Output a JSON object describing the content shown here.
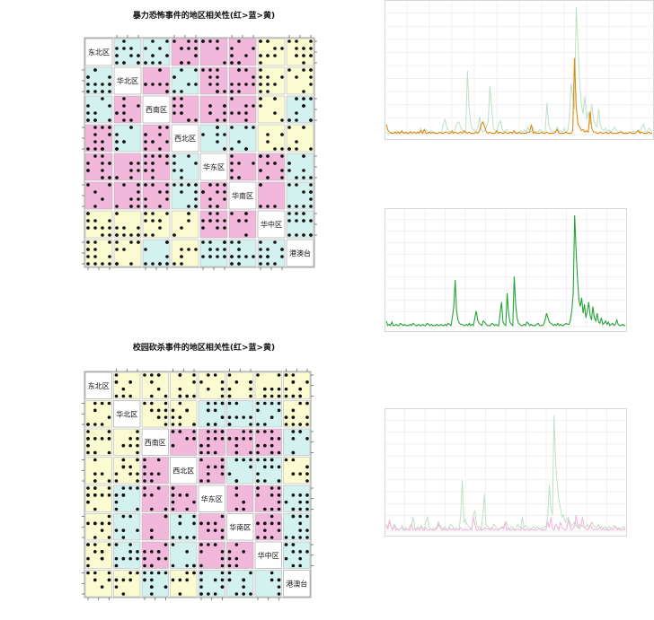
{
  "colors": {
    "red": "#f2b8dc",
    "cyan": "#d3f1ef",
    "yellow": "#fbfbd2",
    "orange": "#e08a12",
    "green": "#24a436",
    "red_line": "#d23b2a",
    "ghost": "#bfe0c6",
    "grid": "#e8e8e8"
  },
  "chart_data": [
    {
      "type": "scatter",
      "title": "暴力恐怖事件的地区相关性(红>蓝>黄)",
      "variables": [
        "东北区",
        "华北区",
        "西南区",
        "西北区",
        "华东区",
        "华南区",
        "华中区",
        "港澳台"
      ],
      "correlation_level": [
        [
          "diag",
          "cyan",
          "cyan",
          "red",
          "red",
          "red",
          "yellow",
          "yellow"
        ],
        [
          "cyan",
          "diag",
          "red",
          "cyan",
          "red",
          "red",
          "yellow",
          "yellow"
        ],
        [
          "cyan",
          "red",
          "diag",
          "red",
          "red",
          "red",
          "yellow",
          "cyan"
        ],
        [
          "red",
          "cyan",
          "red",
          "diag",
          "cyan",
          "cyan",
          "yellow",
          "yellow"
        ],
        [
          "red",
          "red",
          "red",
          "cyan",
          "diag",
          "red",
          "red",
          "cyan"
        ],
        [
          "red",
          "red",
          "red",
          "cyan",
          "red",
          "diag",
          "red",
          "cyan"
        ],
        [
          "yellow",
          "yellow",
          "yellow",
          "yellow",
          "red",
          "red",
          "diag",
          "cyan"
        ],
        [
          "yellow",
          "yellow",
          "cyan",
          "yellow",
          "cyan",
          "cyan",
          "cyan",
          "diag"
        ]
      ]
    },
    {
      "type": "scatter",
      "title": "校园砍杀事件的地区相关性(红>蓝>黄)",
      "variables": [
        "东北区",
        "华北区",
        "西南区",
        "西北区",
        "华东区",
        "华南区",
        "华中区",
        "港澳台"
      ],
      "correlation_level": [
        [
          "diag",
          "yellow",
          "yellow",
          "yellow",
          "yellow",
          "yellow",
          "yellow",
          "yellow"
        ],
        [
          "yellow",
          "diag",
          "yellow",
          "yellow",
          "cyan",
          "cyan",
          "cyan",
          "yellow"
        ],
        [
          "yellow",
          "yellow",
          "diag",
          "red",
          "red",
          "red",
          "red",
          "cyan"
        ],
        [
          "yellow",
          "yellow",
          "red",
          "diag",
          "red",
          "cyan",
          "cyan",
          "yellow"
        ],
        [
          "yellow",
          "cyan",
          "red",
          "red",
          "diag",
          "red",
          "red",
          "cyan"
        ],
        [
          "yellow",
          "cyan",
          "red",
          "cyan",
          "red",
          "diag",
          "red",
          "cyan"
        ],
        [
          "yellow",
          "cyan",
          "red",
          "cyan",
          "red",
          "red",
          "diag",
          "cyan"
        ],
        [
          "yellow",
          "yellow",
          "cyan",
          "yellow",
          "cyan",
          "cyan",
          "cyan",
          "diag"
        ]
      ]
    },
    {
      "type": "line",
      "title": "",
      "series_color": "orange",
      "grid": true,
      "values": [
        8,
        3,
        2,
        1,
        1,
        2,
        1,
        2,
        1,
        3,
        1,
        2,
        1,
        1,
        2,
        1,
        2,
        1,
        2,
        1,
        3,
        1,
        4,
        1,
        1,
        2,
        1,
        2,
        1,
        1,
        1,
        2,
        1,
        1,
        2,
        2,
        1,
        1,
        3,
        1,
        2,
        1,
        1,
        2,
        1,
        3,
        2,
        1,
        2,
        1,
        1,
        1,
        2,
        1,
        3,
        8,
        10,
        6,
        2,
        1,
        2,
        1,
        1,
        1,
        3,
        1,
        2,
        1,
        1,
        2,
        1,
        1,
        2,
        1,
        3,
        1,
        1,
        2,
        1,
        1,
        1,
        1,
        2,
        2,
        8,
        1,
        2,
        1,
        1,
        1,
        2,
        1,
        1,
        2,
        1,
        1,
        1,
        1,
        2,
        4,
        1,
        1,
        1,
        1,
        2,
        1,
        1,
        1,
        3,
        60,
        22,
        8,
        6,
        3,
        4,
        2,
        3,
        2,
        18,
        5,
        2,
        2,
        1,
        1,
        2,
        1,
        1,
        2,
        1,
        1,
        2,
        1,
        1,
        1,
        1,
        2,
        2,
        1,
        1,
        1,
        1,
        2,
        1,
        1,
        1,
        2,
        3,
        1,
        2,
        1,
        1,
        1,
        2,
        1,
        1
      ],
      "ghost": [
        2,
        1,
        1,
        2,
        1,
        1,
        3,
        1,
        1,
        2,
        1,
        1,
        2,
        1,
        3,
        1,
        2,
        1,
        1,
        2,
        5,
        2,
        1,
        4,
        2,
        1,
        3,
        1,
        2,
        1,
        1,
        2,
        1,
        8,
        12,
        6,
        3,
        2,
        1,
        2,
        5,
        9,
        10,
        6,
        3,
        2,
        1,
        50,
        20,
        8,
        4,
        3,
        2,
        6,
        14,
        4,
        2,
        3,
        6,
        10,
        38,
        22,
        5,
        3,
        2,
        8,
        11,
        5,
        2,
        3,
        4,
        2,
        2,
        1,
        2,
        1,
        2,
        1,
        3,
        2,
        4,
        2,
        6,
        3,
        2,
        5,
        1,
        3,
        2,
        4,
        3,
        1,
        2,
        25,
        8,
        4,
        2,
        3,
        2,
        6,
        2,
        3,
        2,
        5,
        2,
        3,
        12,
        40,
        30,
        20,
        100,
        70,
        40,
        24,
        16,
        30,
        12,
        18,
        8,
        24,
        12,
        8,
        6,
        20,
        8,
        4,
        3,
        5,
        2,
        4,
        2,
        3,
        6,
        4,
        2,
        1,
        3,
        2,
        1,
        2,
        1,
        2,
        1,
        3,
        1,
        2,
        4,
        2,
        6,
        8,
        3,
        2,
        5,
        4,
        2
      ]
    },
    {
      "type": "line",
      "title": "",
      "series_color": "green",
      "grid": true,
      "values": [
        5,
        1,
        2,
        1,
        4,
        1,
        1,
        2,
        1,
        1,
        3,
        2,
        1,
        2,
        1,
        1,
        1,
        2,
        1,
        3,
        2,
        1,
        1,
        2,
        1,
        1,
        2,
        1,
        1,
        3,
        2,
        1,
        2,
        1,
        1,
        1,
        2,
        1,
        1,
        2,
        1,
        1,
        2,
        1,
        3,
        2,
        1,
        8,
        18,
        42,
        14,
        6,
        3,
        2,
        2,
        1,
        1,
        2,
        1,
        3,
        1,
        2,
        1,
        8,
        14,
        6,
        3,
        2,
        1,
        5,
        4,
        2,
        1,
        1,
        1,
        3,
        2,
        1,
        2,
        1,
        1,
        12,
        22,
        4,
        2,
        1,
        30,
        12,
        4,
        2,
        1,
        45,
        20,
        8,
        3,
        2,
        1,
        1,
        2,
        1,
        4,
        3,
        1,
        2,
        1,
        1,
        1,
        2,
        3,
        1,
        1,
        1,
        2,
        6,
        12,
        8,
        4,
        3,
        2,
        1,
        2,
        1,
        3,
        1,
        2,
        1,
        1,
        2,
        3,
        2,
        2,
        6,
        14,
        30,
        100,
        70,
        44,
        24,
        18,
        26,
        12,
        20,
        8,
        14,
        22,
        10,
        6,
        18,
        8,
        5,
        12,
        4,
        3,
        8,
        2,
        3,
        5,
        2,
        4,
        1,
        2,
        3,
        1,
        2,
        6,
        2,
        1,
        1,
        2,
        1,
        1
      ],
      "ghost": []
    },
    {
      "type": "line",
      "title": "",
      "series_color": "red",
      "grid": true,
      "values": [
        6,
        2,
        10,
        3,
        1,
        5,
        1,
        2,
        1,
        2,
        3,
        1,
        1,
        2,
        1,
        1,
        6,
        1,
        2,
        1,
        2,
        1,
        4,
        1,
        1,
        3,
        1,
        1,
        2,
        1,
        1,
        1,
        2,
        6,
        3,
        1,
        1,
        2,
        1,
        1,
        3,
        1,
        2,
        1,
        1,
        2,
        1,
        3,
        1,
        1,
        2,
        1,
        1,
        2,
        1,
        12,
        6,
        1,
        1,
        2,
        1,
        1,
        3,
        2,
        2,
        2,
        1,
        3,
        1,
        2,
        1,
        1,
        2,
        4,
        2,
        8,
        1,
        2,
        1,
        1,
        2,
        1,
        1,
        2,
        1,
        1,
        3,
        1,
        1,
        2,
        1,
        1,
        2,
        1,
        1,
        1,
        2,
        2,
        1,
        1,
        1,
        2,
        8,
        3,
        12,
        2,
        1,
        6,
        4,
        1,
        8,
        3,
        2,
        1,
        2,
        10,
        4,
        1,
        2,
        4,
        14,
        4,
        2,
        5,
        12,
        3,
        2,
        1,
        2,
        6,
        2,
        1,
        2,
        1,
        2,
        3,
        1,
        2,
        1,
        2,
        1,
        1,
        2,
        1,
        2,
        4,
        1,
        2,
        1,
        1,
        2,
        1
      ],
      "ghost": [
        4,
        2,
        8,
        3,
        2,
        6,
        4,
        2,
        1,
        2,
        5,
        1,
        3,
        2,
        1,
        5,
        6,
        12,
        3,
        2,
        4,
        1,
        5,
        3,
        2,
        8,
        12,
        4,
        2,
        1,
        3,
        2,
        4,
        8,
        5,
        3,
        2,
        4,
        2,
        1,
        5,
        6,
        4,
        2,
        3,
        2,
        1,
        14,
        44,
        8,
        10,
        6,
        4,
        3,
        2,
        14,
        18,
        6,
        3,
        4,
        2,
        14,
        32,
        6,
        4,
        3,
        2,
        3,
        6,
        4,
        3,
        2,
        2,
        3,
        2,
        6,
        8,
        3,
        2,
        4,
        3,
        1,
        3,
        6,
        4,
        2,
        12,
        3,
        5,
        4,
        3,
        2,
        3,
        4,
        2,
        4,
        3,
        2,
        3,
        2,
        4,
        4,
        12,
        40,
        20,
        14,
        100,
        60,
        40,
        28,
        20,
        12,
        14,
        8,
        10,
        12,
        8,
        4,
        6,
        8,
        5,
        3,
        6,
        4,
        5,
        3,
        4,
        6,
        2,
        5,
        8,
        4,
        4,
        3,
        6,
        3,
        4,
        2,
        4,
        3,
        2,
        4,
        2,
        3,
        5,
        4,
        2,
        3,
        2,
        3,
        4,
        2
      ]
    }
  ]
}
